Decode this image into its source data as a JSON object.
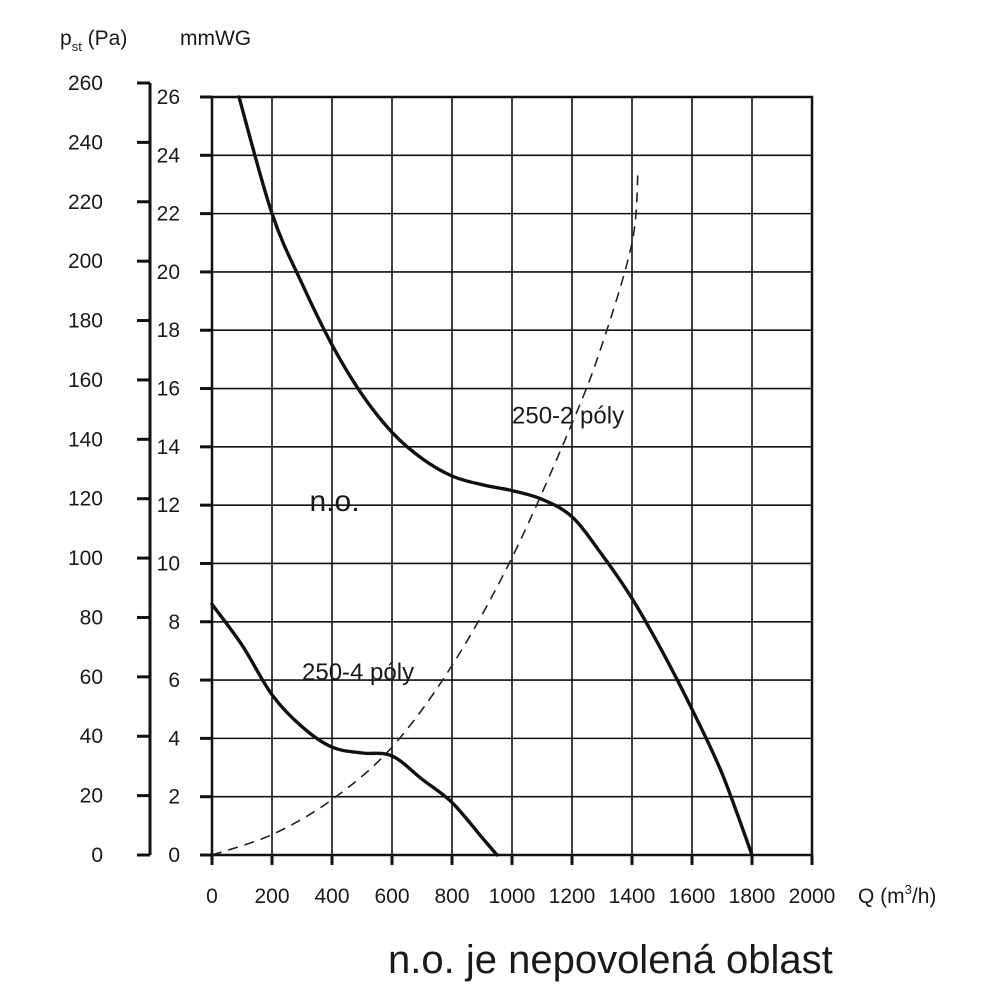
{
  "chart_data": {
    "type": "line",
    "ylabel_left": {
      "main": "p",
      "sub": "st",
      "unit": " (Pa)"
    },
    "ylabel_right": "mmWG",
    "xlabel": {
      "main": "Q (m",
      "sup": "3",
      "end": "/h)"
    },
    "xlim": [
      0,
      2000
    ],
    "ylim_pa": [
      0,
      260
    ],
    "ylim_mmwg": [
      0,
      26
    ],
    "x_ticks": [
      "0",
      "200",
      "400",
      "600",
      "800",
      "1000",
      "1200",
      "1400",
      "1600",
      "1800",
      "2000"
    ],
    "y_ticks_pa": [
      "0",
      "20",
      "40",
      "60",
      "80",
      "100",
      "120",
      "140",
      "160",
      "180",
      "200",
      "220",
      "240",
      "260"
    ],
    "y_ticks_mmwg": [
      "0",
      "2",
      "4",
      "6",
      "8",
      "10",
      "12",
      "14",
      "16",
      "18",
      "20",
      "22",
      "24",
      "26"
    ],
    "grid": true,
    "series": [
      {
        "name": "250-2 póly",
        "style": "solid",
        "x": [
          90,
          200,
          300,
          400,
          500,
          600,
          700,
          800,
          900,
          1000,
          1100,
          1200,
          1300,
          1400,
          1500,
          1600,
          1700,
          1800
        ],
        "y": [
          260,
          220,
          196,
          175,
          158,
          145,
          136,
          130,
          127,
          125,
          122,
          116,
          103,
          88,
          70,
          50,
          28,
          0
        ]
      },
      {
        "name": "250-4 póly",
        "style": "solid",
        "x": [
          0,
          100,
          200,
          300,
          400,
          500,
          600,
          700,
          800,
          900,
          950
        ],
        "y": [
          86,
          72,
          55,
          44,
          37,
          35,
          34,
          26,
          18,
          6,
          0
        ]
      },
      {
        "name": "",
        "style": "dashed",
        "x": [
          0,
          200,
          400,
          600,
          800,
          1000,
          1200,
          1300,
          1400,
          1420
        ],
        "y": [
          0,
          7,
          19,
          37,
          65,
          102,
          148,
          175,
          210,
          235
        ]
      }
    ],
    "annotations": [
      {
        "text": "250-2 póly",
        "x": 1000,
        "y": 148
      },
      {
        "text": "250-4 póly",
        "x": 300,
        "y": 60
      },
      {
        "text": "n.o.",
        "x": 325,
        "y": 118
      }
    ],
    "caption": "n.o. je nepovolená oblast"
  }
}
